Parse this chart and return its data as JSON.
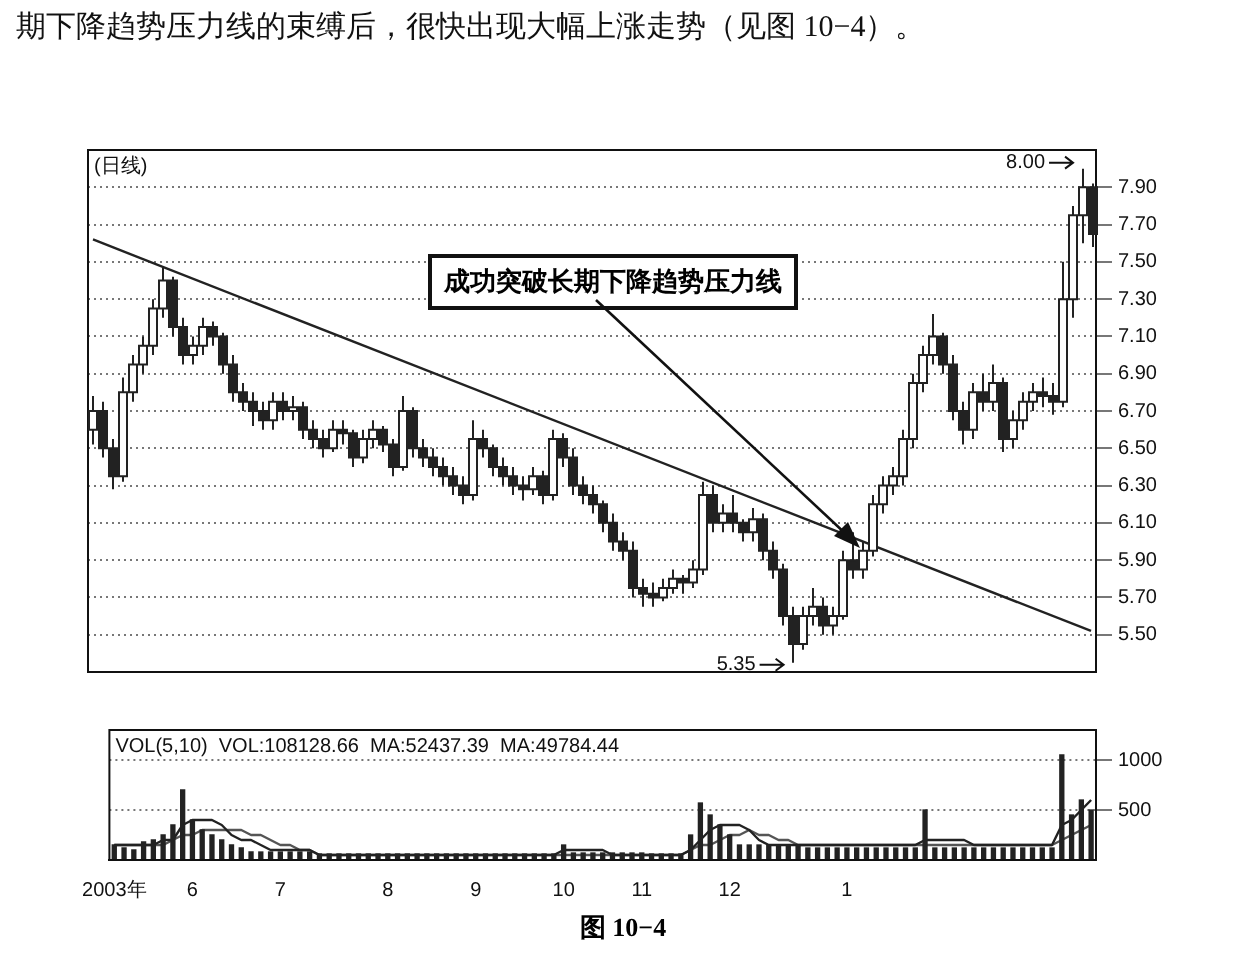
{
  "chart_data": [
    {
      "type": "candlestick",
      "title": "(日线)",
      "subtitle": "期下降趋势压力线的束缚后，很快出现大幅上涨走势（见图 10−4）。",
      "color": "#222222",
      "grid": "y",
      "colors": [
        "#ffffff",
        "#222222",
        "#222222",
        "#ffffff",
        "#ffffff",
        "#ffffff",
        "#ffffff",
        "#ffffff",
        "#222222",
        "#222222",
        "#ffffff",
        "#ffffff",
        "#222222",
        "#222222",
        "#222222",
        "#222222",
        "#222222",
        "#222222",
        "#ffffff",
        "#222222",
        "#ffffff",
        "#222222",
        "#222222",
        "#222222",
        "#ffffff",
        "#222222",
        "#222222",
        "#ffffff",
        "#ffffff",
        "#222222",
        "#222222",
        "#ffffff",
        "#222222",
        "#222222",
        "#222222",
        "#222222",
        "#222222",
        "#222222",
        "#ffffff",
        "#222222",
        "#222222",
        "#222222",
        "#222222",
        "#222222",
        "#ffffff",
        "#222222",
        "#ffffff",
        "#222222",
        "#222222",
        "#222222",
        "#222222",
        "#222222",
        "#222222",
        "#222222",
        "#222222",
        "#222222",
        "#222222",
        "#ffffff",
        "#ffffff",
        "#222222",
        "#ffffff",
        "#ffffff",
        "#222222",
        "#ffffff",
        "#222222",
        "#222222",
        "#ffffff",
        "#222222",
        "#222222",
        "#222222",
        "#222222",
        "#ffffff",
        "#ffffff",
        "#222222",
        "#ffffff",
        "#ffffff",
        "#222222",
        "#ffffff",
        "#ffffff",
        "#ffffff",
        "#ffffff",
        "#ffffff",
        "#ffffff",
        "#ffffff",
        "#ffffff",
        "#222222",
        "#222222",
        "#222222",
        "#ffffff",
        "#222222",
        "#ffffff",
        "#222222",
        "#ffffff",
        "#ffffff",
        "#ffffff",
        "#222222",
        "#222222",
        "#ffffff",
        "#ffffff",
        "#ffffff",
        "#222222"
      ],
      "categories": [
        null,
        null,
        null,
        null,
        null,
        null,
        null,
        null,
        null,
        null,
        null,
        null,
        null,
        null,
        null,
        null,
        null,
        null,
        null,
        null,
        null,
        null,
        null,
        null,
        null,
        null,
        null,
        null,
        null,
        null,
        null,
        null,
        null,
        null,
        null,
        null,
        null,
        null,
        null,
        null,
        null,
        null,
        null,
        null,
        null,
        null,
        null,
        null,
        null,
        null,
        null,
        null,
        null,
        null,
        null,
        null,
        null,
        null,
        null,
        null,
        null,
        null,
        null,
        null,
        null,
        null,
        null,
        null,
        null,
        null,
        null,
        null,
        null,
        null,
        null,
        null,
        null,
        null,
        null,
        null,
        null,
        null,
        null,
        null,
        null,
        null,
        null,
        null,
        null,
        null,
        null,
        null,
        null,
        null,
        null,
        null,
        null,
        null,
        null,
        null,
        null
      ],
      "ohlc": [
        [
          6.6,
          6.78,
          6.52,
          6.7
        ],
        [
          6.7,
          6.75,
          6.45,
          6.5
        ],
        [
          6.5,
          6.55,
          6.28,
          6.35
        ],
        [
          6.35,
          6.88,
          6.32,
          6.8
        ],
        [
          6.8,
          7.0,
          6.75,
          6.95
        ],
        [
          6.95,
          7.1,
          6.9,
          7.05
        ],
        [
          7.05,
          7.3,
          7.0,
          7.25
        ],
        [
          7.25,
          7.47,
          7.2,
          7.4
        ],
        [
          7.4,
          7.42,
          7.1,
          7.15
        ],
        [
          7.15,
          7.2,
          6.95,
          7.0
        ],
        [
          7.0,
          7.1,
          6.95,
          7.05
        ],
        [
          7.05,
          7.2,
          7.0,
          7.15
        ],
        [
          7.15,
          7.18,
          7.05,
          7.1
        ],
        [
          7.1,
          7.12,
          6.9,
          6.95
        ],
        [
          6.95,
          7.0,
          6.75,
          6.8
        ],
        [
          6.8,
          6.85,
          6.7,
          6.75
        ],
        [
          6.75,
          6.8,
          6.62,
          6.7
        ],
        [
          6.7,
          6.75,
          6.6,
          6.65
        ],
        [
          6.65,
          6.8,
          6.6,
          6.75
        ],
        [
          6.75,
          6.8,
          6.65,
          6.7
        ],
        [
          6.7,
          6.78,
          6.65,
          6.72
        ],
        [
          6.72,
          6.75,
          6.55,
          6.6
        ],
        [
          6.6,
          6.65,
          6.5,
          6.55
        ],
        [
          6.55,
          6.6,
          6.45,
          6.5
        ],
        [
          6.5,
          6.65,
          6.48,
          6.6
        ],
        [
          6.6,
          6.65,
          6.52,
          6.58
        ],
        [
          6.58,
          6.6,
          6.4,
          6.45
        ],
        [
          6.45,
          6.6,
          6.42,
          6.55
        ],
        [
          6.55,
          6.65,
          6.5,
          6.6
        ],
        [
          6.6,
          6.62,
          6.48,
          6.52
        ],
        [
          6.52,
          6.55,
          6.35,
          6.4
        ],
        [
          6.4,
          6.78,
          6.38,
          6.7
        ],
        [
          6.7,
          6.72,
          6.45,
          6.5
        ],
        [
          6.5,
          6.55,
          6.4,
          6.45
        ],
        [
          6.45,
          6.5,
          6.35,
          6.4
        ],
        [
          6.4,
          6.45,
          6.3,
          6.35
        ],
        [
          6.35,
          6.4,
          6.25,
          6.3
        ],
        [
          6.3,
          6.35,
          6.2,
          6.25
        ],
        [
          6.25,
          6.65,
          6.22,
          6.55
        ],
        [
          6.55,
          6.6,
          6.45,
          6.5
        ],
        [
          6.5,
          6.52,
          6.35,
          6.4
        ],
        [
          6.4,
          6.45,
          6.3,
          6.35
        ],
        [
          6.35,
          6.4,
          6.25,
          6.3
        ],
        [
          6.3,
          6.35,
          6.22,
          6.28
        ],
        [
          6.28,
          6.4,
          6.25,
          6.35
        ],
        [
          6.35,
          6.38,
          6.2,
          6.25
        ],
        [
          6.25,
          6.6,
          6.22,
          6.55
        ],
        [
          6.55,
          6.58,
          6.4,
          6.45
        ],
        [
          6.45,
          6.5,
          6.25,
          6.3
        ],
        [
          6.3,
          6.35,
          6.2,
          6.25
        ],
        [
          6.25,
          6.3,
          6.15,
          6.2
        ],
        [
          6.2,
          6.22,
          6.05,
          6.1
        ],
        [
          6.1,
          6.15,
          5.95,
          6.0
        ],
        [
          6.0,
          6.05,
          5.9,
          5.95
        ],
        [
          5.95,
          6.0,
          5.7,
          5.75
        ],
        [
          5.75,
          5.8,
          5.65,
          5.72
        ],
        [
          5.72,
          5.78,
          5.65,
          5.7
        ],
        [
          5.7,
          5.8,
          5.68,
          5.75
        ],
        [
          5.75,
          5.85,
          5.72,
          5.8
        ],
        [
          5.8,
          5.82,
          5.72,
          5.78
        ],
        [
          5.78,
          5.9,
          5.75,
          5.85
        ],
        [
          5.85,
          6.32,
          5.82,
          6.25
        ],
        [
          6.25,
          6.3,
          6.05,
          6.1
        ],
        [
          6.1,
          6.2,
          6.05,
          6.15
        ],
        [
          6.15,
          6.25,
          6.05,
          6.1
        ],
        [
          6.1,
          6.12,
          6.0,
          6.05
        ],
        [
          6.05,
          6.18,
          6.0,
          6.12
        ],
        [
          6.12,
          6.15,
          5.9,
          5.95
        ],
        [
          5.95,
          6.0,
          5.8,
          5.85
        ],
        [
          5.85,
          5.88,
          5.55,
          5.6
        ],
        [
          5.6,
          5.65,
          5.35,
          5.45
        ],
        [
          5.45,
          5.65,
          5.42,
          5.6
        ],
        [
          5.6,
          5.75,
          5.55,
          5.65
        ],
        [
          5.65,
          5.7,
          5.5,
          5.55
        ],
        [
          5.55,
          5.65,
          5.5,
          5.6
        ],
        [
          5.6,
          5.95,
          5.58,
          5.9
        ],
        [
          5.9,
          6.05,
          5.8,
          5.85
        ],
        [
          5.85,
          6.0,
          5.8,
          5.95
        ],
        [
          5.95,
          6.25,
          5.92,
          6.2
        ],
        [
          6.2,
          6.35,
          6.15,
          6.3
        ],
        [
          6.3,
          6.4,
          6.25,
          6.35
        ],
        [
          6.35,
          6.6,
          6.3,
          6.55
        ],
        [
          6.55,
          6.9,
          6.5,
          6.85
        ],
        [
          6.85,
          7.05,
          6.8,
          7.0
        ],
        [
          7.0,
          7.22,
          6.95,
          7.1
        ],
        [
          7.1,
          7.12,
          6.9,
          6.95
        ],
        [
          6.95,
          7.0,
          6.65,
          6.7
        ],
        [
          6.7,
          6.75,
          6.52,
          6.6
        ],
        [
          6.6,
          6.85,
          6.55,
          6.8
        ],
        [
          6.8,
          6.9,
          6.7,
          6.75
        ],
        [
          6.75,
          6.95,
          6.7,
          6.85
        ],
        [
          6.85,
          6.88,
          6.48,
          6.55
        ],
        [
          6.55,
          6.7,
          6.5,
          6.65
        ],
        [
          6.65,
          6.8,
          6.6,
          6.75
        ],
        [
          6.75,
          6.85,
          6.7,
          6.8
        ],
        [
          6.8,
          6.88,
          6.72,
          6.78
        ],
        [
          6.78,
          6.85,
          6.68,
          6.75
        ],
        [
          6.75,
          7.5,
          6.72,
          7.3
        ],
        [
          7.3,
          7.8,
          7.2,
          7.75
        ],
        [
          7.75,
          8.0,
          7.6,
          7.9
        ],
        [
          7.9,
          7.92,
          7.58,
          7.65
        ]
      ],
      "series": [
        {
          "type": "line",
          "color": "#222222",
          "values": [
            7.62,
            null,
            null,
            null,
            null,
            null,
            null,
            null,
            null,
            null,
            null,
            null,
            null,
            null,
            null,
            null,
            null,
            null,
            null,
            null,
            null,
            null,
            null,
            null,
            null,
            null,
            null,
            null,
            null,
            null,
            null,
            null,
            null,
            null,
            null,
            null,
            null,
            null,
            null,
            null,
            null,
            null,
            null,
            null,
            null,
            null,
            null,
            null,
            null,
            null,
            null,
            null,
            null,
            null,
            null,
            null,
            null,
            null,
            null,
            null,
            null,
            null,
            null,
            null,
            null,
            null,
            null,
            null,
            null,
            null,
            null,
            null,
            null,
            null,
            null,
            null,
            null,
            null,
            null,
            null,
            null,
            null,
            null,
            null,
            null,
            null,
            null,
            null,
            null,
            null,
            null,
            null,
            null,
            null,
            null,
            null,
            null,
            null,
            null,
            null,
            5.52
          ]
        }
      ],
      "ylim": [
        5.3,
        8.1
      ],
      "yticks": [
        {
          "value": 5.5,
          "label": "5.50"
        },
        {
          "value": 5.7,
          "label": "5.70"
        },
        {
          "value": 5.9,
          "label": "5.90"
        },
        {
          "value": 6.1,
          "label": "6.10"
        },
        {
          "value": 6.3,
          "label": "6.30"
        },
        {
          "value": 6.5,
          "label": "6.50"
        },
        {
          "value": 6.7,
          "label": "6.70"
        },
        {
          "value": 6.9,
          "label": "6.90"
        },
        {
          "value": 7.1,
          "label": "7.10"
        },
        {
          "value": 7.3,
          "label": "7.30"
        },
        {
          "value": 7.5,
          "label": "7.50"
        },
        {
          "value": 7.7,
          "label": "7.70"
        },
        {
          "value": 7.9,
          "label": "7.90"
        }
      ],
      "annotations": [
        "成功突破长期下降趋势压力线",
        "8.00",
        "5.35"
      ]
    },
    {
      "type": "bar",
      "title": "VOL(5,10)  VOL:108128.66  MA:52437.39  MA:49784.44",
      "grid": "y",
      "categories": [
        "2003年",
        null,
        null,
        null,
        null,
        null,
        null,
        null,
        "6",
        null,
        null,
        null,
        null,
        null,
        null,
        null,
        null,
        "7",
        null,
        null,
        null,
        null,
        null,
        null,
        null,
        null,
        null,
        null,
        "8",
        null,
        null,
        null,
        null,
        null,
        null,
        null,
        null,
        "9",
        null,
        null,
        null,
        null,
        null,
        null,
        null,
        null,
        "10",
        null,
        null,
        null,
        null,
        null,
        null,
        null,
        "11",
        null,
        null,
        null,
        null,
        null,
        null,
        null,
        null,
        "12",
        null,
        null,
        null,
        null,
        null,
        null,
        null,
        null,
        null,
        null,
        null,
        "1",
        null,
        null,
        null,
        null,
        null,
        null,
        null,
        null,
        null,
        null,
        null,
        null,
        null,
        null,
        null,
        null,
        null,
        null,
        null,
        null,
        null,
        null,
        null,
        null,
        null
      ],
      "series": [
        {
          "color": "#222222",
          "values": [
            150,
            120,
            100,
            180,
            200,
            250,
            350,
            700,
            400,
            300,
            250,
            200,
            150,
            120,
            80,
            80,
            80,
            80,
            80,
            80,
            80,
            60,
            60,
            60,
            60,
            60,
            60,
            60,
            60,
            60,
            60,
            60,
            60,
            60,
            60,
            60,
            60,
            60,
            60,
            60,
            60,
            60,
            60,
            60,
            60,
            60,
            150,
            70,
            70,
            70,
            70,
            70,
            70,
            70,
            70,
            60,
            60,
            60,
            60,
            250,
            570,
            450,
            350,
            250,
            150,
            150,
            150,
            150,
            150,
            150,
            150,
            120,
            120,
            120,
            120,
            120,
            120,
            120,
            120,
            120,
            120,
            120,
            120,
            500,
            120,
            120,
            120,
            120,
            120,
            120,
            120,
            120,
            120,
            120,
            120,
            120,
            120,
            1050,
            450,
            600,
            500
          ]
        },
        {
          "type": "line",
          "color": "#222222",
          "values": [
            150,
            150,
            150,
            150,
            150,
            200,
            200,
            350,
            400,
            400,
            400,
            350,
            250,
            200,
            200,
            150,
            100,
            100,
            100,
            100,
            100,
            50,
            50,
            50,
            50,
            50,
            50,
            50,
            50,
            50,
            50,
            50,
            50,
            50,
            50,
            50,
            50,
            50,
            50,
            50,
            50,
            50,
            50,
            50,
            50,
            50,
            100,
            100,
            100,
            100,
            100,
            50,
            50,
            50,
            50,
            50,
            50,
            50,
            50,
            100,
            200,
            300,
            350,
            350,
            350,
            300,
            200,
            150,
            150,
            150,
            150,
            150,
            150,
            150,
            150,
            150,
            150,
            150,
            150,
            150,
            150,
            150,
            150,
            200,
            200,
            200,
            200,
            200,
            150,
            150,
            150,
            150,
            150,
            150,
            150,
            150,
            150,
            350,
            400,
            500,
            600
          ]
        },
        {
          "type": "line",
          "color": "#555555",
          "values": [
            150,
            150,
            150,
            150,
            150,
            150,
            200,
            250,
            250,
            300,
            300,
            300,
            300,
            300,
            250,
            250,
            200,
            150,
            150,
            100,
            100,
            50,
            50,
            50,
            50,
            50,
            50,
            50,
            50,
            50,
            50,
            50,
            50,
            50,
            50,
            50,
            50,
            50,
            50,
            50,
            50,
            50,
            50,
            50,
            50,
            50,
            50,
            50,
            50,
            50,
            50,
            50,
            50,
            50,
            50,
            50,
            50,
            50,
            50,
            100,
            150,
            150,
            200,
            250,
            250,
            300,
            250,
            250,
            200,
            200,
            150,
            150,
            150,
            150,
            150,
            150,
            150,
            150,
            150,
            150,
            150,
            150,
            150,
            150,
            150,
            150,
            150,
            150,
            150,
            150,
            150,
            150,
            150,
            150,
            150,
            150,
            150,
            200,
            250,
            300,
            350
          ]
        }
      ],
      "ylim": [
        0,
        1300
      ],
      "yticks": [
        500,
        1000
      ],
      "annotations": [
        "图 10−4"
      ]
    }
  ]
}
